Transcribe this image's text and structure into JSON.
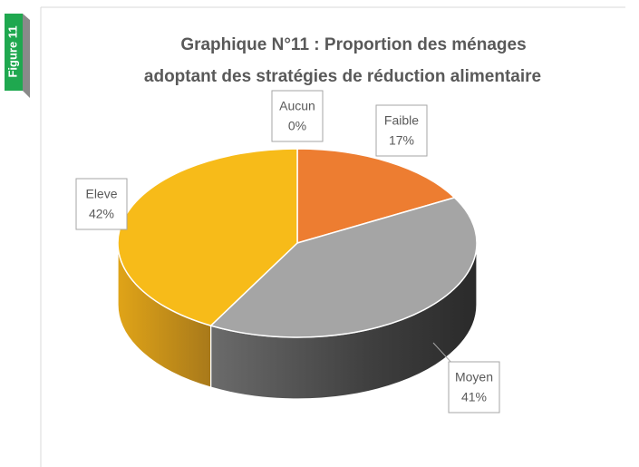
{
  "figure_label": "Figure 11",
  "chart_data": {
    "type": "pie3d",
    "title": [
      "Graphique N°11 : Proportion des ménages",
      "adoptant des stratégies de réduction alimentaire"
    ],
    "categories": [
      "Aucun",
      "Faible",
      "Moyen",
      "Eleve"
    ],
    "values": [
      0,
      17,
      41,
      42
    ],
    "value_labels": [
      "0%",
      "17%",
      "41%",
      "42%"
    ],
    "colors": [
      "#5b9bd5",
      "#ed7d31",
      "#a5a5a5",
      "#f7bb19"
    ]
  }
}
